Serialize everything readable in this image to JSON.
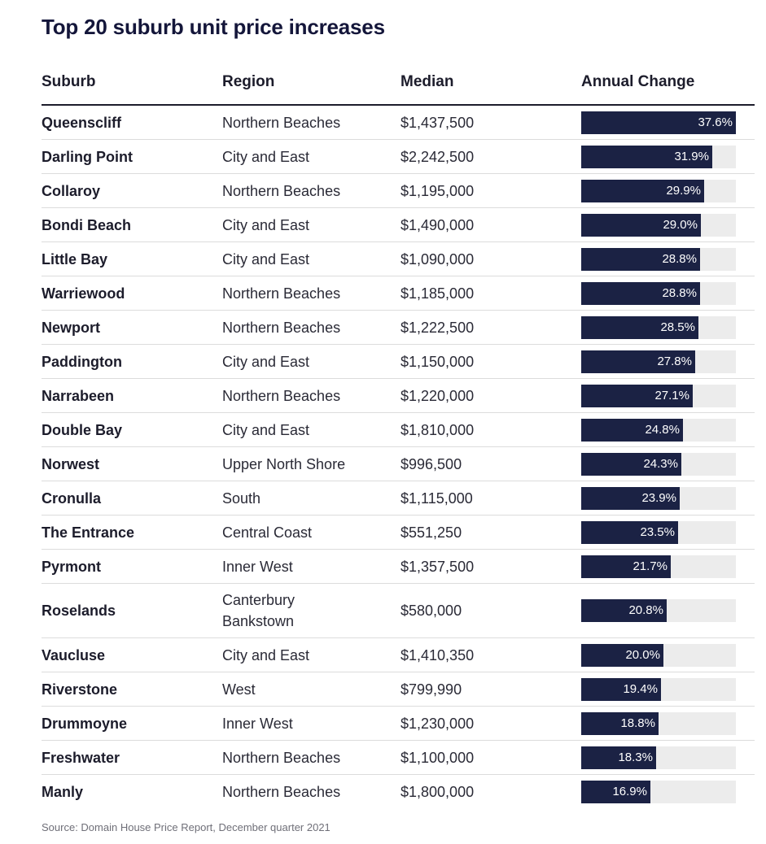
{
  "title": "Top 20 suburb unit price increases",
  "headers": {
    "suburb": "Suburb",
    "region": "Region",
    "median": "Median",
    "change": "Annual Change"
  },
  "source": "Source: Domain House Price Report, December quarter 2021",
  "colors": {
    "bar": "#1b2244",
    "track": "#ececec",
    "title": "#14163a"
  },
  "chart_data": {
    "type": "table",
    "title": "Top 20 suburb unit price increases",
    "columns": [
      "Suburb",
      "Region",
      "Median",
      "Annual Change"
    ],
    "xlim": [
      0,
      37.6
    ],
    "rows": [
      {
        "suburb": "Queenscliff",
        "region": "Northern Beaches",
        "median": "$1,437,500",
        "change": 37.6,
        "label": "37.6%"
      },
      {
        "suburb": "Darling Point",
        "region": "City and East",
        "median": "$2,242,500",
        "change": 31.9,
        "label": "31.9%"
      },
      {
        "suburb": "Collaroy",
        "region": "Northern Beaches",
        "median": "$1,195,000",
        "change": 29.9,
        "label": "29.9%"
      },
      {
        "suburb": "Bondi Beach",
        "region": "City and East",
        "median": "$1,490,000",
        "change": 29.0,
        "label": "29.0%"
      },
      {
        "suburb": "Little Bay",
        "region": "City and East",
        "median": "$1,090,000",
        "change": 28.8,
        "label": "28.8%"
      },
      {
        "suburb": "Warriewood",
        "region": "Northern Beaches",
        "median": "$1,185,000",
        "change": 28.8,
        "label": "28.8%"
      },
      {
        "suburb": "Newport",
        "region": "Northern Beaches",
        "median": "$1,222,500",
        "change": 28.5,
        "label": "28.5%"
      },
      {
        "suburb": "Paddington",
        "region": "City and East",
        "median": "$1,150,000",
        "change": 27.8,
        "label": "27.8%"
      },
      {
        "suburb": "Narrabeen",
        "region": "Northern Beaches",
        "median": "$1,220,000",
        "change": 27.1,
        "label": "27.1%"
      },
      {
        "suburb": "Double Bay",
        "region": "City and East",
        "median": "$1,810,000",
        "change": 24.8,
        "label": "24.8%"
      },
      {
        "suburb": "Norwest",
        "region": "Upper North Shore",
        "median": "$996,500",
        "change": 24.3,
        "label": "24.3%"
      },
      {
        "suburb": "Cronulla",
        "region": "South",
        "median": "$1,115,000",
        "change": 23.9,
        "label": "23.9%"
      },
      {
        "suburb": "The Entrance",
        "region": "Central Coast",
        "median": "$551,250",
        "change": 23.5,
        "label": "23.5%"
      },
      {
        "suburb": "Pyrmont",
        "region": "Inner West",
        "median": "$1,357,500",
        "change": 21.7,
        "label": "21.7%"
      },
      {
        "suburb": "Roselands",
        "region": "Canterbury Bankstown",
        "median": "$580,000",
        "change": 20.8,
        "label": "20.8%"
      },
      {
        "suburb": "Vaucluse",
        "region": "City and East",
        "median": "$1,410,350",
        "change": 20.0,
        "label": "20.0%"
      },
      {
        "suburb": "Riverstone",
        "region": "West",
        "median": "$799,990",
        "change": 19.4,
        "label": "19.4%"
      },
      {
        "suburb": "Drummoyne",
        "region": "Inner West",
        "median": "$1,230,000",
        "change": 18.8,
        "label": "18.8%"
      },
      {
        "suburb": "Freshwater",
        "region": "Northern Beaches",
        "median": "$1,100,000",
        "change": 18.3,
        "label": "18.3%"
      },
      {
        "suburb": "Manly",
        "region": "Northern Beaches",
        "median": "$1,800,000",
        "change": 16.9,
        "label": "16.9%"
      }
    ]
  }
}
